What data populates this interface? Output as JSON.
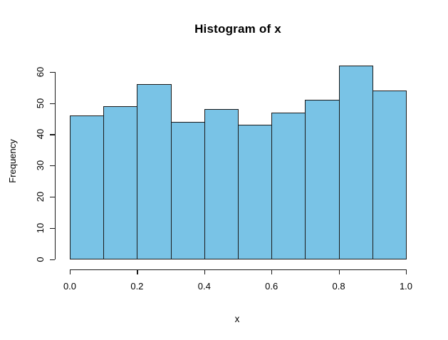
{
  "chart_data": {
    "type": "bar",
    "chart_kind": "histogram",
    "title": "Histogram of x",
    "xlabel": "x",
    "ylabel": "Frequency",
    "bin_edges": [
      0.0,
      0.1,
      0.2,
      0.3,
      0.4,
      0.5,
      0.6,
      0.7,
      0.8,
      0.9,
      1.0
    ],
    "counts": [
      46,
      49,
      56,
      44,
      48,
      43,
      47,
      51,
      62,
      54
    ],
    "x_tick_labels": [
      "0.0",
      "0.2",
      "0.4",
      "0.6",
      "0.8",
      "1.0"
    ],
    "x_tick_values": [
      0.0,
      0.2,
      0.4,
      0.6,
      0.8,
      1.0
    ],
    "y_tick_labels": [
      "0",
      "10",
      "20",
      "30",
      "40",
      "50",
      "60"
    ],
    "y_tick_values": [
      0,
      10,
      20,
      30,
      40,
      50,
      60
    ],
    "xlim": [
      0.0,
      1.0
    ],
    "ylim": [
      0,
      62
    ],
    "grid": false,
    "legend": false,
    "bar_fill_color": "#79C3E6",
    "bar_border_color": "#1a1a1a",
    "axis_color": "#1a1a1a",
    "text_color": "#000000",
    "background_color": "#ffffff"
  }
}
